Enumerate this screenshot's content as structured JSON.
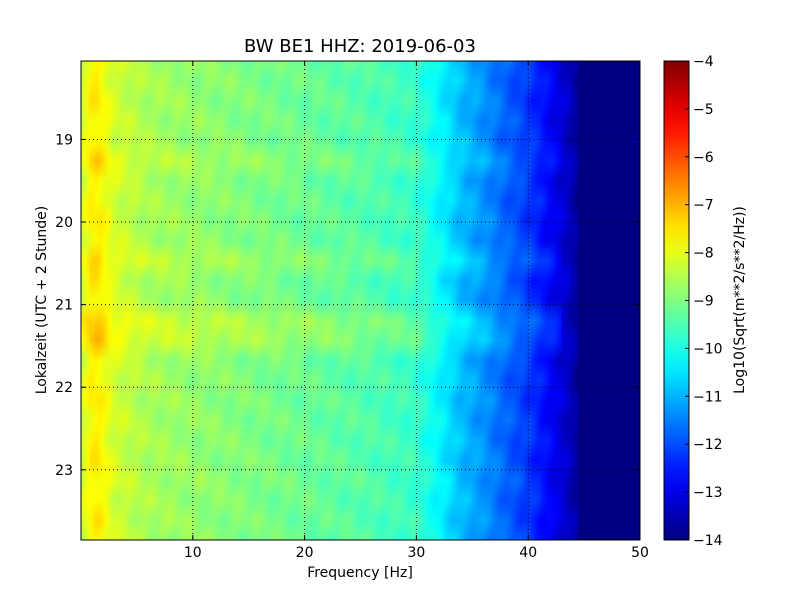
{
  "chart_data": {
    "type": "heatmap",
    "title": "BW BE1 HHZ: 2019-06-03",
    "xlabel": "Frequency [Hz]",
    "ylabel": "Lokalzeit (UTC + 2 Stunde)",
    "colorbar_label": "Log10(Sqrt(m**2/s**2/Hz))",
    "colormap": "jet",
    "xlim": [
      0,
      50
    ],
    "ylim": [
      18.05,
      23.85
    ],
    "y_axis_inverted": true,
    "clim": [
      -14,
      -4
    ],
    "grid": true,
    "x_ticks": [
      10,
      20,
      30,
      40,
      50
    ],
    "x_tick_labels": [
      "10",
      "20",
      "30",
      "40",
      "50"
    ],
    "y_ticks": [
      19,
      20,
      21,
      22,
      23
    ],
    "y_tick_labels": [
      "19",
      "20",
      "21",
      "22",
      "23"
    ],
    "colorbar_ticks": [
      -4,
      -5,
      -6,
      -7,
      -8,
      -9,
      -10,
      -11,
      -12,
      -13,
      -14
    ],
    "colorbar_tick_labels": [
      "−4",
      "−5",
      "−6",
      "−7",
      "−8",
      "−9",
      "−10",
      "−11",
      "−12",
      "−13",
      "−14"
    ],
    "profile": {
      "frequency_hz": [
        0,
        0.8,
        1.5,
        3,
        6,
        10,
        15,
        20,
        25,
        30,
        32,
        34,
        36,
        38,
        40,
        42,
        43.5,
        45,
        50
      ],
      "log10_amplitude": [
        -8.3,
        -7.7,
        -7.6,
        -8.2,
        -8.6,
        -8.8,
        -9.0,
        -9.2,
        -9.4,
        -9.7,
        -10.3,
        -10.9,
        -11.3,
        -11.8,
        -12.2,
        -12.8,
        -13.3,
        -14.0,
        -14.0
      ]
    },
    "bright_lines_hours": [
      18.45,
      19.3,
      20.1,
      20.5,
      21.2,
      21.45,
      22.25,
      23.2
    ]
  }
}
